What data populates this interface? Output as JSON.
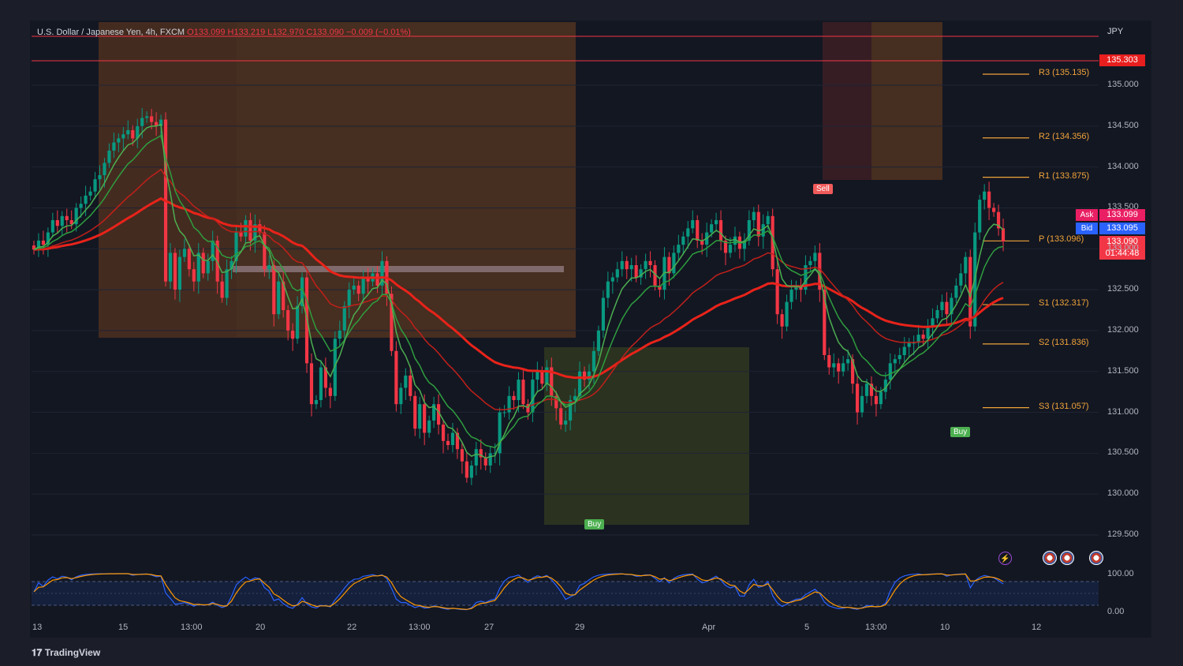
{
  "header": {
    "symbol": "U.S. Dollar / Japanese Yen, 4h, FXCM",
    "ohlc": "O133.099 H133.219 L132.970 C133.090 −0.009 (−0.01%)"
  },
  "currency": "JPY",
  "price_tags": {
    "high_line": "135.303",
    "ask_label": "Ask",
    "ask": "133.099",
    "bid_label": "Bid",
    "bid": "133.095",
    "last": "133.090",
    "countdown": "01:44:48"
  },
  "pivots": {
    "r3": "R3 (135.135)",
    "r2": "R2 (134.356)",
    "r1": "R1 (133.875)",
    "p": "P (133.096)",
    "s1": "S1 (132.317)",
    "s2": "S2 (131.836)",
    "s3": "S3 (131.057)"
  },
  "signals": {
    "sell": "Sell",
    "buy1": "Buy",
    "buy2": "Buy"
  },
  "footer": {
    "brand": "TradingView"
  },
  "colors": {
    "up": "#089981",
    "down": "#f23645",
    "pivot": "#f0a33a",
    "bg": "#131722",
    "ema_red": "#e8231a",
    "ema_green": "#4caf50"
  },
  "icons": {
    "alert": "bolt-icon",
    "events": "us-flag-icon"
  },
  "chart_data": {
    "type": "candlestick",
    "title": "U.S. Dollar / Japanese Yen, 4h, FXCM",
    "y_axis": {
      "ticks": [
        "135.000",
        "134.500",
        "134.000",
        "133.500",
        "133.000",
        "132.500",
        "132.000",
        "131.500",
        "131.000",
        "130.500",
        "130.000",
        "129.500"
      ],
      "ylim": [
        129.3,
        135.7
      ]
    },
    "x_axis": {
      "ticks": [
        "13",
        "15",
        "13:00",
        "20",
        "22",
        "13:00",
        "27",
        "29",
        "Apr",
        "5",
        "13:00",
        "10",
        "12"
      ]
    },
    "oscillator": {
      "ticks": [
        "100.00",
        "0.00"
      ]
    },
    "closes": [
      132.99,
      133.1,
      133.05,
      133.2,
      133.35,
      133.28,
      133.4,
      133.35,
      133.3,
      133.5,
      133.55,
      133.65,
      133.7,
      133.85,
      133.9,
      134.05,
      134.2,
      134.3,
      134.35,
      134.4,
      134.45,
      134.35,
      134.5,
      134.6,
      134.62,
      134.55,
      134.5,
      134.58,
      132.6,
      132.95,
      132.5,
      132.9,
      133.0,
      132.75,
      132.6,
      132.95,
      132.7,
      132.85,
      133.1,
      132.6,
      132.4,
      132.75,
      132.85,
      133.2,
      133.15,
      133.35,
      133.1,
      133.3,
      133.2,
      132.75,
      132.8,
      132.2,
      132.6,
      132.25,
      132.0,
      131.9,
      132.3,
      132.65,
      131.6,
      131.1,
      131.15,
      131.55,
      131.3,
      131.2,
      131.9,
      132.0,
      132.3,
      132.5,
      132.55,
      132.45,
      132.65,
      132.6,
      132.7,
      132.55,
      132.85,
      132.45,
      131.75,
      131.1,
      131.3,
      131.45,
      131.2,
      130.8,
      131.1,
      130.75,
      130.9,
      131.1,
      130.85,
      130.65,
      130.6,
      130.75,
      130.55,
      130.4,
      130.2,
      130.35,
      130.55,
      130.45,
      130.35,
      130.5,
      130.5,
      131.0,
      131.0,
      131.2,
      131.15,
      131.4,
      131.1,
      131.0,
      131.4,
      131.5,
      131.35,
      131.55,
      131.2,
      131.05,
      130.85,
      130.9,
      131.15,
      131.2,
      131.5,
      131.4,
      131.5,
      131.75,
      132.0,
      132.4,
      132.6,
      132.65,
      132.75,
      132.85,
      132.75,
      132.8,
      132.65,
      132.75,
      132.85,
      132.8,
      132.55,
      132.5,
      132.9,
      132.7,
      132.95,
      133.05,
      133.15,
      133.25,
      133.35,
      133.1,
      133.05,
      133.2,
      133.3,
      133.35,
      133.1,
      132.95,
      133.05,
      133.15,
      133.0,
      133.1,
      133.35,
      133.45,
      133.15,
      133.3,
      133.4,
      132.75,
      132.2,
      132.05,
      132.35,
      132.5,
      132.55,
      132.5,
      132.8,
      132.85,
      132.95,
      132.5,
      131.7,
      131.55,
      131.6,
      131.5,
      131.6,
      131.65,
      131.35,
      131.0,
      131.2,
      131.35,
      131.2,
      131.1,
      131.25,
      131.4,
      131.6,
      131.65,
      131.7,
      131.8,
      131.85,
      131.85,
      131.95,
      131.9,
      132.05,
      132.15,
      132.25,
      132.35,
      132.2,
      132.4,
      132.55,
      132.7,
      132.9,
      132.05,
      133.2,
      133.6,
      133.7,
      133.5,
      133.45,
      133.25,
      133.09
    ]
  }
}
